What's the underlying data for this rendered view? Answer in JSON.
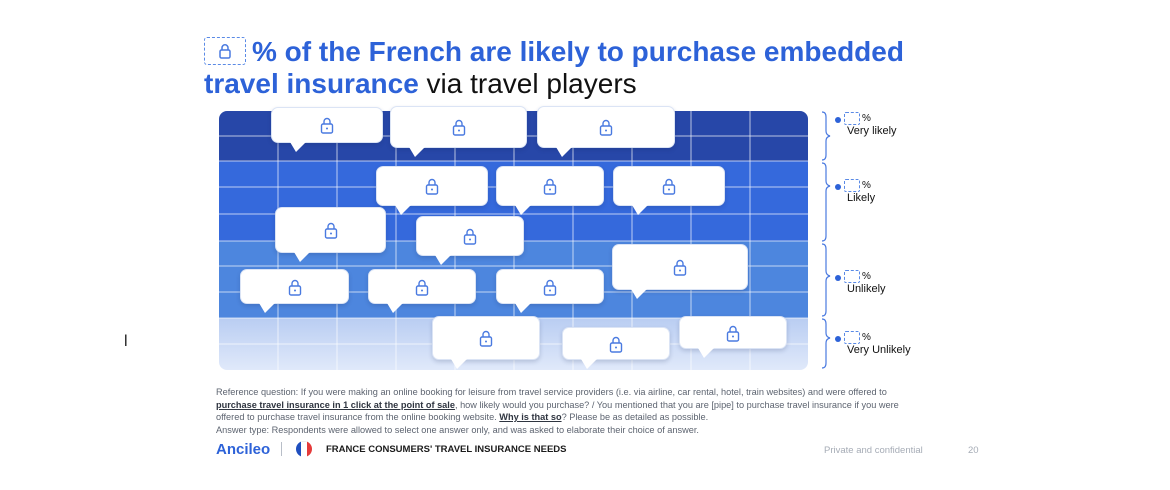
{
  "title": {
    "line1": "% of the French are likely to purchase embedded",
    "line2_bold": "travel insurance",
    "line2_rest": " via travel players"
  },
  "categories": [
    {
      "pct_suffix": "%",
      "label": "Very likely"
    },
    {
      "pct_suffix": "%",
      "label": "Likely"
    },
    {
      "pct_suffix": "%",
      "label": "Unlikely"
    },
    {
      "pct_suffix": "%",
      "label": "Very Unlikely"
    }
  ],
  "stray_mark": "l",
  "notes": {
    "line1": "Reference question: If you were making an online booking for leisure from travel service providers (i.e. via airline, car rental, hotel, train websites) and were offered to",
    "line2_link": "purchase travel insurance in 1 click at the point of sale",
    "line2_rest": ", how likely would you purchase? / You mentioned that you are [pipe] to purchase travel insurance if you were",
    "line3_pre": "offered to purchase travel insurance from the online booking website. ",
    "line3_link": "Why is that so",
    "line3_post": "? Please be as detailed as possible.",
    "line4": "Answer type: Respondents were allowed to select one answer only, and was asked to elaborate their choice of answer."
  },
  "footer": {
    "brand": "Ancileo",
    "report_title": "FRANCE CONSUMERS' TRAVEL INSURANCE NEEDS",
    "confidential": "Private and confidential",
    "page_number": "20"
  },
  "colors": {
    "accent": "#2d62d8",
    "band_very_likely": "#2747a8",
    "band_likely": "#3569dc",
    "band_unlikely": "#4d86de",
    "band_very_unlikely": "#d6e2f8"
  },
  "icons": {
    "locked_content": "lock-icon"
  }
}
